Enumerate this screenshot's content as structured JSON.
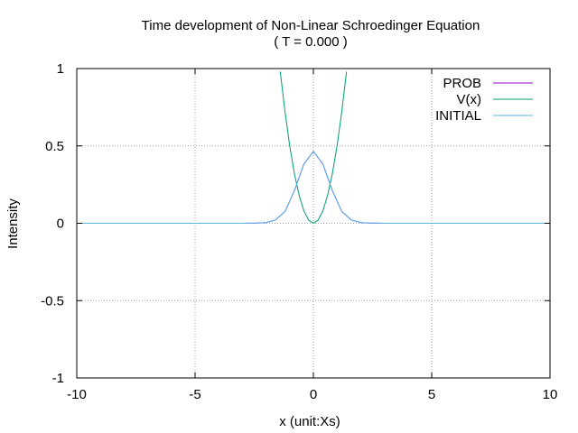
{
  "chart_data": {
    "type": "line",
    "title": "Time development of Non-Linear Schroedinger Equation",
    "subtitle": "( T = 0.000 )",
    "xlabel": "x (unit:Xs)",
    "ylabel": "Intensity",
    "xlim": [
      -10,
      10
    ],
    "ylim": [
      -1,
      1
    ],
    "xticks": [
      -10,
      -5,
      0,
      5,
      10
    ],
    "xtick_labels": [
      "-10",
      "-5",
      "0",
      "5",
      "10"
    ],
    "yticks": [
      -1,
      -0.5,
      0,
      0.5,
      1
    ],
    "ytick_labels": [
      "-1",
      "-0.5",
      "0",
      "0.5",
      "1"
    ],
    "grid": true,
    "legend_position": "top-right",
    "series": [
      {
        "name": "PROB",
        "color": "#9400d3",
        "x": [
          -10,
          -4,
          -3,
          -2.4,
          -2,
          -1.6,
          -1.2,
          -0.8,
          -0.4,
          0,
          0.4,
          0.8,
          1.2,
          1.6,
          2,
          2.4,
          3,
          4,
          10
        ],
        "y": [
          0,
          0,
          0.0001,
          0.0009,
          0.0049,
          0.0217,
          0.0761,
          0.2112,
          0.3828,
          0.4646,
          0.3828,
          0.2112,
          0.0761,
          0.0217,
          0.0049,
          0.0009,
          0.0001,
          0,
          0
        ]
      },
      {
        "name": "V(x)",
        "color": "#009e73",
        "x": [
          -1.4,
          -1.2,
          -1.0,
          -0.8,
          -0.6,
          -0.4,
          -0.2,
          0,
          0.2,
          0.4,
          0.6,
          0.8,
          1.0,
          1.2,
          1.4
        ],
        "y": [
          0.98,
          0.72,
          0.5,
          0.32,
          0.18,
          0.08,
          0.02,
          0,
          0.02,
          0.08,
          0.18,
          0.32,
          0.5,
          0.72,
          0.98
        ]
      },
      {
        "name": "INITIAL",
        "color": "#56b4e9",
        "x": [
          -10,
          -4,
          -3,
          -2.4,
          -2,
          -1.6,
          -1.2,
          -0.8,
          -0.4,
          0,
          0.4,
          0.8,
          1.2,
          1.6,
          2,
          2.4,
          3,
          4,
          10
        ],
        "y": [
          0,
          0,
          0.0001,
          0.0009,
          0.0049,
          0.0217,
          0.0761,
          0.2112,
          0.3828,
          0.4646,
          0.3828,
          0.2112,
          0.0761,
          0.0217,
          0.0049,
          0.0009,
          0.0001,
          0,
          0
        ]
      }
    ]
  }
}
